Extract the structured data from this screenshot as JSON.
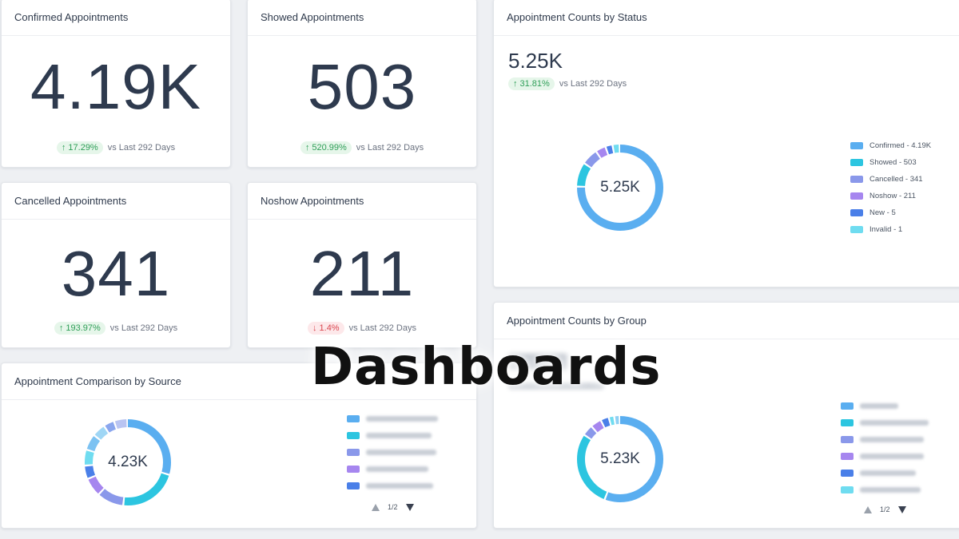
{
  "cards": {
    "confirmed": {
      "title": "Confirmed Appointments",
      "value": "4.19K",
      "change": "17.29%",
      "direction": "up",
      "comparison": "vs Last 292 Days"
    },
    "showed": {
      "title": "Showed Appointments",
      "value": "503",
      "change": "520.99%",
      "direction": "up",
      "comparison": "vs Last 292 Days"
    },
    "cancelled": {
      "title": "Cancelled Appointments",
      "value": "341",
      "change": "193.97%",
      "direction": "up",
      "comparison": "vs Last 292 Days"
    },
    "noshow": {
      "title": "Noshow Appointments",
      "value": "211",
      "change": "1.4%",
      "direction": "down",
      "comparison": "vs Last 292 Days"
    }
  },
  "status_chart": {
    "title": "Appointment Counts by Status",
    "total": "5.25K",
    "change": "31.81%",
    "comparison": "vs Last 292 Days",
    "center": "5.25K",
    "legend": [
      {
        "label": "Confirmed - 4.19K",
        "value": 4190,
        "color": "#5aaef0"
      },
      {
        "label": "Showed - 503",
        "value": 503,
        "color": "#2cc5e0"
      },
      {
        "label": "Cancelled - 341",
        "value": 341,
        "color": "#8a98ea"
      },
      {
        "label": "Noshow - 211",
        "value": 211,
        "color": "#a686ef"
      },
      {
        "label": "New - 5",
        "value": 5,
        "color": "#4a7fe8"
      },
      {
        "label": "Invalid - 1",
        "value": 1,
        "color": "#6fdcf0"
      }
    ]
  },
  "source_chart": {
    "title": "Appointment Comparison by Source",
    "center": "4.23K",
    "pager": "1/2",
    "segments": [
      {
        "value": 30,
        "color": "#5aaef0"
      },
      {
        "value": 22,
        "color": "#2cc5e0"
      },
      {
        "value": 10,
        "color": "#8a98ea"
      },
      {
        "value": 7,
        "color": "#a686ef"
      },
      {
        "value": 5,
        "color": "#4a7fe8"
      },
      {
        "value": 6,
        "color": "#6fdcf0"
      },
      {
        "value": 6,
        "color": "#7cc2f2"
      },
      {
        "value": 5,
        "color": "#9fd6f5"
      },
      {
        "value": 4,
        "color": "#8aa6ee"
      },
      {
        "value": 5,
        "color": "#b9c4f2"
      }
    ],
    "legend_colors": [
      "#5aaef0",
      "#2cc5e0",
      "#8a98ea",
      "#a686ef",
      "#4a7fe8"
    ]
  },
  "group_chart": {
    "title": "Appointment Counts by Group",
    "center": "5.23K",
    "pager": "1/2",
    "segments": [
      {
        "value": 55,
        "color": "#5aaef0"
      },
      {
        "value": 28,
        "color": "#2cc5e0"
      },
      {
        "value": 4,
        "color": "#8a98ea"
      },
      {
        "value": 4,
        "color": "#a686ef"
      },
      {
        "value": 3,
        "color": "#4a7fe8"
      },
      {
        "value": 2,
        "color": "#6fdcf0"
      },
      {
        "value": 2,
        "color": "#8fd0f4"
      }
    ],
    "legend_colors": [
      "#5aaef0",
      "#2cc5e0",
      "#8a98ea",
      "#a686ef",
      "#4a7fe8",
      "#6fdcf0"
    ]
  },
  "overlay": {
    "title": "Dashboards"
  },
  "icons": {
    "up": "arrow-up-icon",
    "down": "arrow-down-icon"
  }
}
